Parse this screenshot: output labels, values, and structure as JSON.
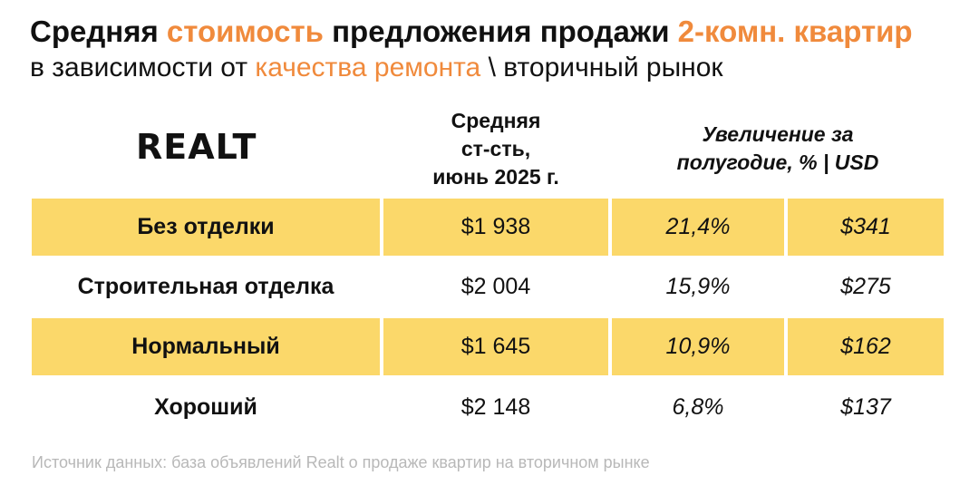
{
  "title": {
    "line1_part1": "Средняя ",
    "line1_accent1": "стоимость",
    "line1_part2": " предложения продажи ",
    "line1_accent2": "2-комн. квартир",
    "line2_part1": "в зависимости от ",
    "line2_accent": "качества ремонта",
    "line2_part2": " \\ вторичный рынок"
  },
  "logo_text": "REALT",
  "colors": {
    "accent": "#f08a3c",
    "row_highlight": "#fbd86a",
    "footnote": "#b8b8b8"
  },
  "chart_data": {
    "type": "table",
    "headers": {
      "price": [
        "Средняя",
        "ст-сть,",
        "июнь 2025 г."
      ],
      "growth": [
        "Увеличение за",
        "полугодие, % | USD"
      ]
    },
    "rows": [
      {
        "label": "Без отделки",
        "price": "$1 938",
        "percent": "21,4%",
        "usd": "$341",
        "highlight": true
      },
      {
        "label": "Строительная отделка",
        "price": "$2 004",
        "percent": "15,9%",
        "usd": "$275",
        "highlight": false
      },
      {
        "label": "Нормальный",
        "price": "$1 645",
        "percent": "10,9%",
        "usd": "$162",
        "highlight": true
      },
      {
        "label": "Хороший",
        "price": "$2 148",
        "percent": "6,8%",
        "usd": "$137",
        "highlight": false
      }
    ]
  },
  "footnote": "Источник данных: база объявлений Realt о продаже квартир на вторичном рынке"
}
